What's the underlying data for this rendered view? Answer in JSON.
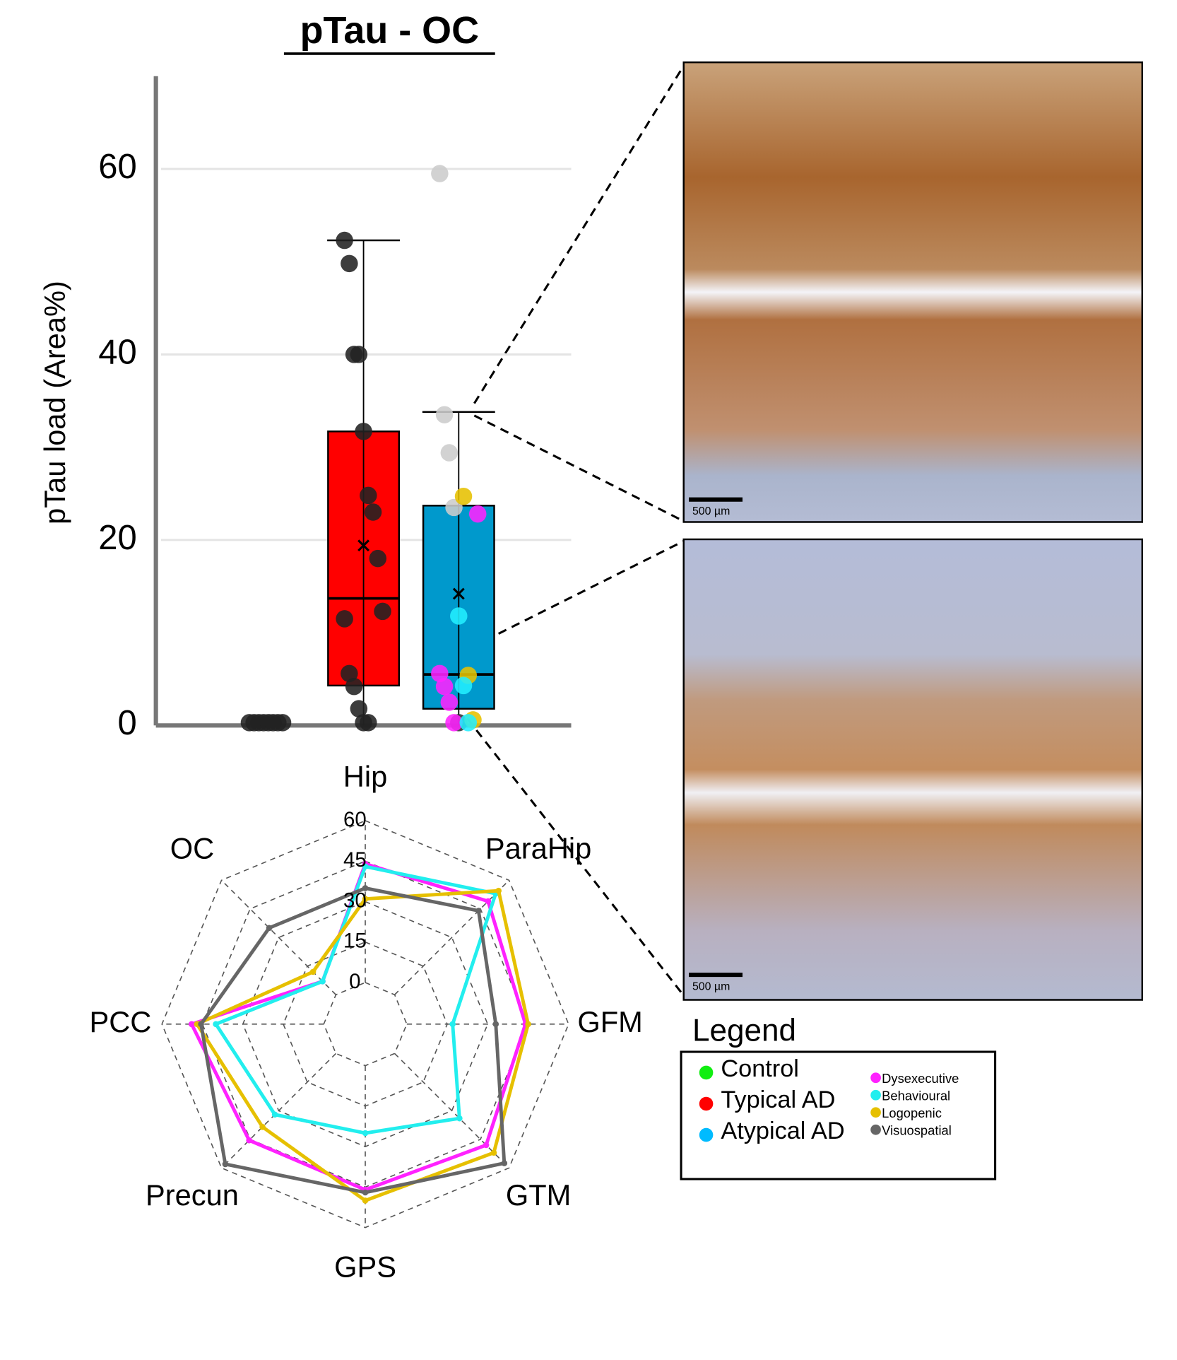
{
  "chart_data": [
    {
      "type": "box",
      "title": "pTau - OC",
      "y_label": "pTau load (Area%)",
      "categories": [
        null,
        null,
        null
      ],
      "ylim": [
        0,
        70
      ],
      "yticks": [
        0,
        20,
        40,
        60
      ],
      "grid": true,
      "boxes": [
        {
          "color": "#00e000",
          "points": [
            0.3,
            0.3,
            0.3,
            0.3,
            0.3,
            0.3,
            0.3,
            0.3
          ],
          "point_colors": [
            "#222222",
            "#222222",
            "#222222",
            "#222222",
            "#222222",
            "#222222",
            "#222222",
            "#222222"
          ]
        },
        {
          "color": "#ff0000",
          "q1": 4.3,
          "median": 13.7,
          "q3": 31.7,
          "whisker_low": 0,
          "whisker_high": 52.3,
          "mean": 19.4,
          "points": [
            52.3,
            49.8,
            40,
            40,
            31.7,
            24.8,
            23,
            18,
            12.3,
            11.5,
            5.6,
            4.2,
            1.8,
            0.3,
            0.3
          ],
          "point_colors": [
            "#222222",
            "#222222",
            "#222222",
            "#222222",
            "#222222",
            "#222222",
            "#222222",
            "#222222",
            "#222222",
            "#222222",
            "#222222",
            "#222222",
            "#222222",
            "#222222",
            "#222222"
          ]
        },
        {
          "color": "#0099cc",
          "q1": 1.8,
          "median": 5.5,
          "q3": 23.7,
          "whisker_low": 0,
          "whisker_high": 33.8,
          "mean": 14.2,
          "points": [
            59.5,
            33.5,
            29.4,
            23.5,
            0.3,
            24.7,
            5.4,
            0.6,
            22.8,
            5.6,
            4.2,
            2.5,
            0.3,
            11.8,
            4.3,
            0.3
          ],
          "point_colors": [
            "#cccccc",
            "#cccccc",
            "#cccccc",
            "#cccccc",
            "#333333",
            "#e6c000",
            "#e6c000",
            "#e6c000",
            "#ff22ff",
            "#ff22ff",
            "#ff22ff",
            "#ff22ff",
            "#ff22ff",
            "#22eeff",
            "#22eeff",
            "#22eeff"
          ]
        }
      ]
    },
    {
      "type": "radar",
      "categories": [
        "Hip",
        "ParaHip",
        "GFM",
        "GTM",
        "GPS",
        "Precun",
        "PCC",
        "OC"
      ],
      "rlim": [
        0,
        60
      ],
      "rticks": [
        0,
        15,
        30,
        45,
        60
      ],
      "series": [
        {
          "name": "Dysexecutive",
          "color": "#ff22ff",
          "values": [
            44,
            49,
            44,
            48,
            46,
            45.5,
            49,
            7
          ]
        },
        {
          "name": "Behavioural",
          "color": "#22eeee",
          "values": [
            43,
            53,
            17,
            34,
            25,
            32,
            40,
            7
          ]
        },
        {
          "name": "Logopenic",
          "color": "#e6c000",
          "values": [
            31,
            54.5,
            45,
            52,
            50,
            38.5,
            47,
            12
          ]
        },
        {
          "name": "Visuospatial",
          "color": "#666666",
          "values": [
            35,
            44,
            33,
            57.5,
            47,
            58,
            45.5,
            35
          ]
        }
      ]
    }
  ],
  "legend": {
    "title": "Legend",
    "groups": [
      {
        "name": "Control",
        "color": "#11ee11"
      },
      {
        "name": "Typical AD",
        "color": "#ff0000"
      },
      {
        "name": "Atypical AD",
        "color": "#00bbff"
      }
    ]
  },
  "images": {
    "scale_bars": [
      "500 µm",
      "500 µm"
    ]
  }
}
